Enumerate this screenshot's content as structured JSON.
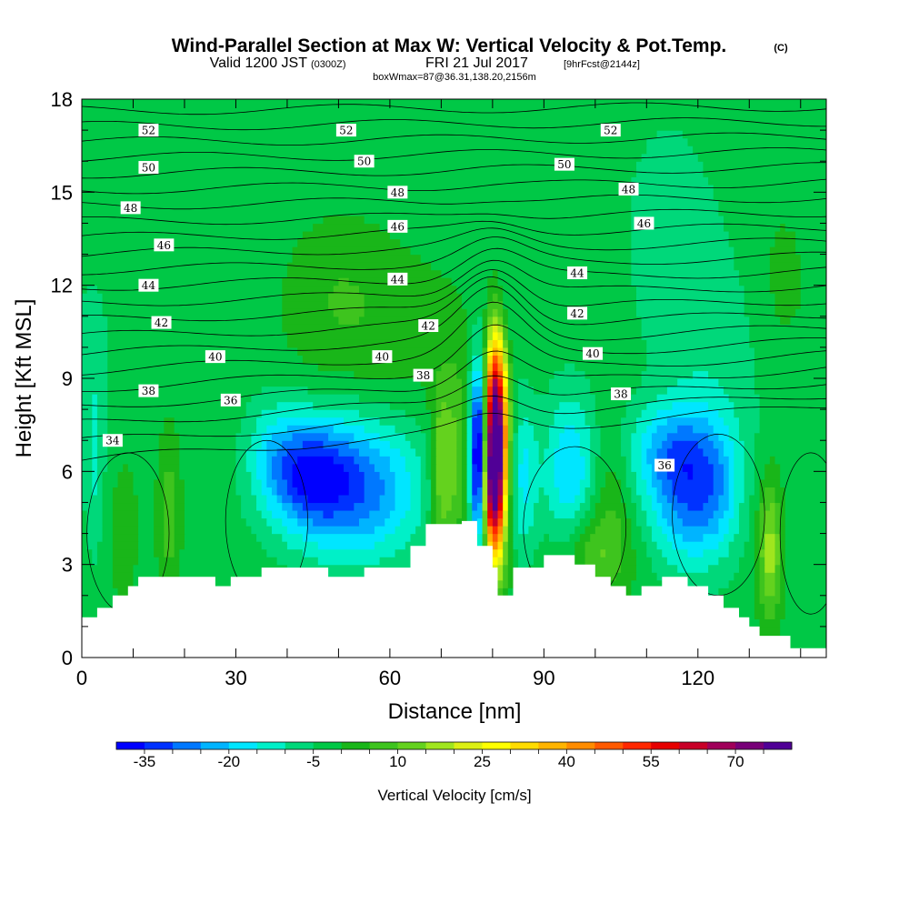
{
  "colors": {
    "palette": [
      "#0000ff",
      "#0032ff",
      "#0078ff",
      "#00b4ff",
      "#00e6ff",
      "#00f0c8",
      "#00d87a",
      "#00c846",
      "#19b619",
      "#3ec41e",
      "#64d21e",
      "#a0e61e",
      "#dcf014",
      "#ffff00",
      "#ffdc00",
      "#ffb400",
      "#ff8c00",
      "#ff5a00",
      "#ff2800",
      "#e60000",
      "#c80028",
      "#a0005a",
      "#780078",
      "#500096"
    ],
    "terrain": "#ffffff"
  },
  "chart_data": {
    "type": "heatmap",
    "title": "Wind-Parallel Section at Max W: Vertical Velocity & Pot.Temp.",
    "title_mark": "(C)",
    "subtitle_valid": "Valid 1200 JST",
    "subtitle_utc": "(0300Z)",
    "subtitle_date": "FRI 21 Jul 2017",
    "subtitle_fcst": "[9hrFcst@2144z]",
    "subtitle_box": "boxWmax=87@36.31,138.20,2156m",
    "xlabel": "Distance [nm]",
    "ylabel": "Height [Kft MSL]",
    "xlim": [
      0,
      145
    ],
    "ylim": [
      0,
      18
    ],
    "x_ticks": [
      0,
      30,
      60,
      90,
      120
    ],
    "y_ticks": [
      0,
      3,
      6,
      9,
      12,
      15,
      18
    ],
    "colorbar": {
      "label": "Vertical Velocity [cm/s]",
      "min": -40,
      "max": 80,
      "step": 5,
      "tick_labels": [
        "-35",
        "-20",
        "-5",
        "10",
        "25",
        "40",
        "55",
        "70"
      ]
    },
    "contour_levels": [
      {
        "x": 6,
        "y": 7.0,
        "text": "34"
      },
      {
        "x": 13,
        "y": 8.6,
        "text": "38"
      },
      {
        "x": 29,
        "y": 8.3,
        "text": "36"
      },
      {
        "x": 26,
        "y": 9.7,
        "text": "40"
      },
      {
        "x": 15.5,
        "y": 10.8,
        "text": "42"
      },
      {
        "x": 13,
        "y": 12.0,
        "text": "44"
      },
      {
        "x": 16,
        "y": 13.3,
        "text": "46"
      },
      {
        "x": 9.5,
        "y": 14.5,
        "text": "48"
      },
      {
        "x": 13,
        "y": 15.8,
        "text": "50"
      },
      {
        "x": 13,
        "y": 17.0,
        "text": "52"
      },
      {
        "x": 51.5,
        "y": 17.0,
        "text": "52"
      },
      {
        "x": 55,
        "y": 16.0,
        "text": "50"
      },
      {
        "x": 61.5,
        "y": 15.0,
        "text": "48"
      },
      {
        "x": 61.5,
        "y": 13.9,
        "text": "46"
      },
      {
        "x": 61.5,
        "y": 12.2,
        "text": "44"
      },
      {
        "x": 67.5,
        "y": 10.7,
        "text": "42"
      },
      {
        "x": 58.5,
        "y": 9.7,
        "text": "40"
      },
      {
        "x": 66.5,
        "y": 9.1,
        "text": "38"
      },
      {
        "x": 103,
        "y": 17.0,
        "text": "52"
      },
      {
        "x": 94,
        "y": 15.9,
        "text": "50"
      },
      {
        "x": 106.5,
        "y": 15.1,
        "text": "48"
      },
      {
        "x": 109.5,
        "y": 14.0,
        "text": "46"
      },
      {
        "x": 96.5,
        "y": 12.4,
        "text": "44"
      },
      {
        "x": 96.5,
        "y": 11.1,
        "text": "42"
      },
      {
        "x": 99.5,
        "y": 9.8,
        "text": "40"
      },
      {
        "x": 105,
        "y": 8.5,
        "text": "38"
      },
      {
        "x": 113.5,
        "y": 6.2,
        "text": "36"
      }
    ]
  }
}
